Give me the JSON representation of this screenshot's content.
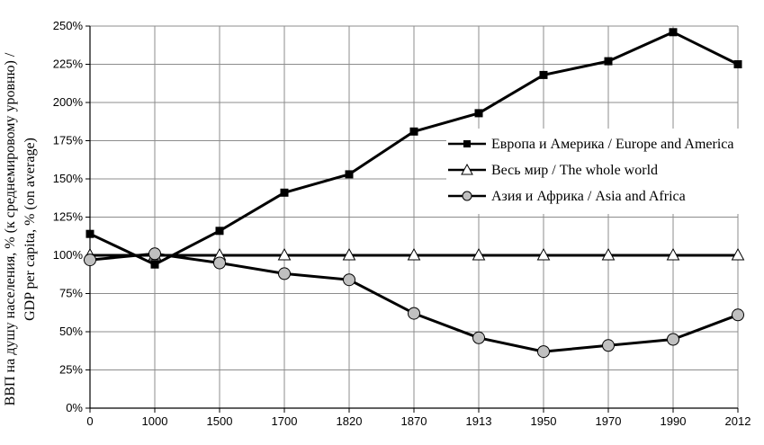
{
  "chart_data": {
    "type": "line",
    "categories": [
      "0",
      "1000",
      "1500",
      "1700",
      "1820",
      "1870",
      "1913",
      "1950",
      "1970",
      "1990",
      "2012"
    ],
    "series": [
      {
        "name": "Европа и Америка / Europe and America",
        "marker": "square",
        "color": "#000000",
        "values": [
          114,
          94,
          116,
          141,
          153,
          181,
          193,
          218,
          227,
          246,
          225
        ]
      },
      {
        "name": "Весь мир / The whole world",
        "marker": "triangle",
        "color": "#000000",
        "values": [
          100,
          100,
          100,
          100,
          100,
          100,
          100,
          100,
          100,
          100,
          100
        ]
      },
      {
        "name": "Азия и Африка / Asia and Africa",
        "marker": "circle",
        "color": "#000000",
        "values": [
          97,
          101,
          95,
          88,
          84,
          62,
          46,
          37,
          41,
          45,
          61
        ]
      }
    ],
    "ylabel_lines": [
      "ВВП на душу населения, % (к среднемировому уровню) /",
      "GDP per capita, % (on average)"
    ],
    "yticks": [
      "0%",
      "25%",
      "50%",
      "75%",
      "100%",
      "125%",
      "150%",
      "175%",
      "200%",
      "225%",
      "250%"
    ],
    "ylim": [
      0,
      250
    ],
    "grid": true,
    "legend_position": "right"
  }
}
